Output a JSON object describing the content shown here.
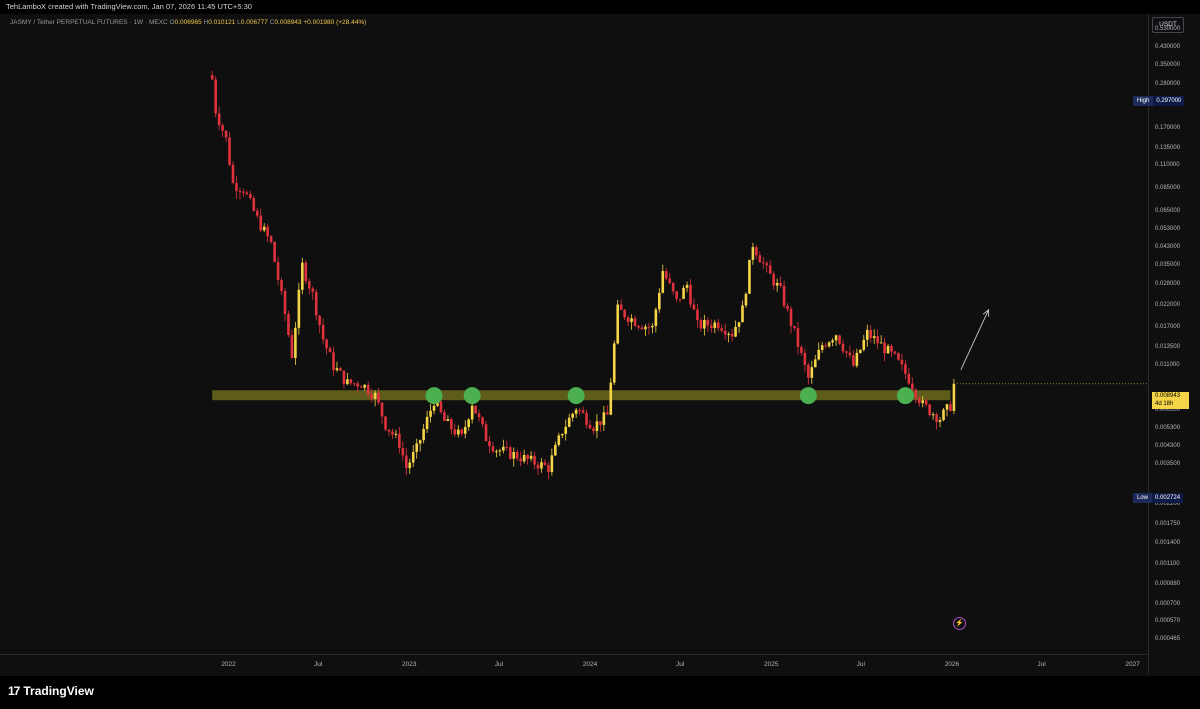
{
  "header": {
    "credit": "TehLamboX created with TradingView.com, Jan 07, 2026 11:45 UTC+5:30",
    "symbol": "JASMY / Tether PERPETUAL FUTURES · 1W · MEXC",
    "ohlc": {
      "o_label": "O",
      "o": "0.006965",
      "h_label": "H",
      "h": "0.010121",
      "l_label": "L",
      "l": "0.006777",
      "c_label": "C",
      "c": "0.008943",
      "change": "+0.001980 (+28.44%)"
    }
  },
  "currency": "USDT",
  "colors": {
    "up": "#f5d547",
    "down": "#e0323c",
    "zone": "#6b6a1c",
    "marker": "#4caf50",
    "arrow": "#c8c8c8"
  },
  "price_axis": {
    "scale": "log",
    "ticks": [
      "0.530000",
      "0.430000",
      "0.350000",
      "0.280000",
      "0.220000",
      "0.170000",
      "0.135000",
      "0.110000",
      "0.085000",
      "0.065000",
      "0.053000",
      "0.043000",
      "0.035000",
      "0.028000",
      "0.022000",
      "0.017000",
      "0.013500",
      "0.011000",
      "0.006500",
      "0.005300",
      "0.004300",
      "0.003500",
      "0.002200",
      "0.001750",
      "0.001400",
      "0.001100",
      "0.000880",
      "0.000700",
      "0.000570",
      "0.000465"
    ],
    "high": {
      "label": "High",
      "value": "0.297000"
    },
    "low": {
      "label": "Low",
      "value": "0.002724"
    },
    "current": {
      "value": "0.008943",
      "countdown": "4d 18h"
    }
  },
  "time_axis": {
    "ticks": [
      "2022",
      "Jul",
      "2023",
      "Jul",
      "2024",
      "Jul",
      "2025",
      "Jul",
      "2026",
      "Jul",
      "2027"
    ]
  },
  "brand": {
    "logo": "17",
    "name": "TradingView"
  },
  "chart_data": {
    "type": "candlestick",
    "title": "JASMY / Tether PERPETUAL FUTURES · 1W · MEXC",
    "y_scale": "log",
    "ylim": [
      0.000465,
      0.53
    ],
    "xlim": [
      "2021-10-01",
      "2027-02-01"
    ],
    "support_zone": {
      "low": 0.0074,
      "high": 0.0083,
      "from": "2021-11-29",
      "to": "2025-12-29"
    },
    "touch_markers": [
      {
        "date": "2023-02-20",
        "price": 0.0078
      },
      {
        "date": "2023-05-08",
        "price": 0.0078
      },
      {
        "date": "2023-12-04",
        "price": 0.0078
      },
      {
        "date": "2025-03-17",
        "price": 0.0078
      },
      {
        "date": "2025-09-29",
        "price": 0.0078
      }
    ],
    "projection_arrow": {
      "from": {
        "date": "2026-01-19",
        "price": 0.0105
      },
      "to": {
        "date": "2026-03-16",
        "price": 0.021
      }
    },
    "price_path": [
      [
        "2021-11-29",
        0.3
      ],
      [
        "2021-12-06",
        0.21
      ],
      [
        "2021-12-27",
        0.15
      ],
      [
        "2022-01-10",
        0.09
      ],
      [
        "2022-01-31",
        0.085
      ],
      [
        "2022-02-28",
        0.06
      ],
      [
        "2022-03-28",
        0.045
      ],
      [
        "2022-04-25",
        0.02
      ],
      [
        "2022-05-09",
        0.0125
      ],
      [
        "2022-05-30",
        0.035
      ],
      [
        "2022-06-20",
        0.025
      ],
      [
        "2022-07-11",
        0.015
      ],
      [
        "2022-08-01",
        0.011
      ],
      [
        "2022-08-29",
        0.009
      ],
      [
        "2022-09-26",
        0.009
      ],
      [
        "2022-10-24",
        0.0078
      ],
      [
        "2022-11-14",
        0.0056
      ],
      [
        "2022-12-12",
        0.0045
      ],
      [
        "2022-12-26",
        0.0034
      ],
      [
        "2023-01-16",
        0.0042
      ],
      [
        "2023-02-20",
        0.0074
      ],
      [
        "2023-03-13",
        0.0058
      ],
      [
        "2023-04-17",
        0.0048
      ],
      [
        "2023-05-08",
        0.0072
      ],
      [
        "2023-06-05",
        0.0048
      ],
      [
        "2023-06-26",
        0.0042
      ],
      [
        "2023-08-07",
        0.0039
      ],
      [
        "2023-09-11",
        0.0036
      ],
      [
        "2023-10-09",
        0.0034
      ],
      [
        "2023-11-06",
        0.0052
      ],
      [
        "2023-12-04",
        0.0068
      ],
      [
        "2024-01-08",
        0.0055
      ],
      [
        "2024-02-05",
        0.0062
      ],
      [
        "2024-02-26",
        0.021
      ],
      [
        "2024-04-08",
        0.018
      ],
      [
        "2024-05-06",
        0.017
      ],
      [
        "2024-05-27",
        0.033
      ],
      [
        "2024-06-24",
        0.023
      ],
      [
        "2024-07-15",
        0.028
      ],
      [
        "2024-08-05",
        0.0175
      ],
      [
        "2024-09-16",
        0.018
      ],
      [
        "2024-10-14",
        0.016
      ],
      [
        "2024-11-04",
        0.021
      ],
      [
        "2024-11-25",
        0.045
      ],
      [
        "2024-12-23",
        0.033
      ],
      [
        "2025-01-20",
        0.026
      ],
      [
        "2025-02-17",
        0.016
      ],
      [
        "2025-03-17",
        0.0095
      ],
      [
        "2025-04-14",
        0.014
      ],
      [
        "2025-05-12",
        0.016
      ],
      [
        "2025-06-16",
        0.011
      ],
      [
        "2025-07-14",
        0.016
      ],
      [
        "2025-08-11",
        0.014
      ],
      [
        "2025-09-08",
        0.012
      ],
      [
        "2025-10-06",
        0.0095
      ],
      [
        "2025-11-03",
        0.007
      ],
      [
        "2025-12-08",
        0.006
      ],
      [
        "2025-12-29",
        0.00696
      ],
      [
        "2026-01-05",
        0.008943
      ]
    ]
  }
}
